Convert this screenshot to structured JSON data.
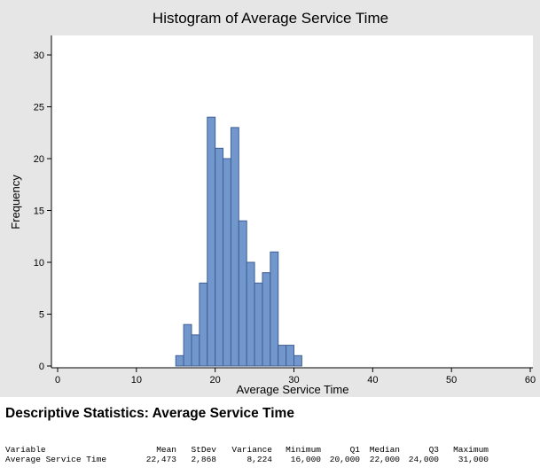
{
  "chart_data": {
    "type": "bar",
    "subtype": "histogram",
    "title": "Histogram of Average Service Time",
    "xlabel": "Average Service Time",
    "ylabel": "Frequency",
    "xlim": [
      0,
      60
    ],
    "ylim": [
      0,
      31
    ],
    "x_ticks": [
      0,
      10,
      20,
      30,
      40,
      50,
      60
    ],
    "y_ticks": [
      0,
      5,
      10,
      15,
      20,
      25,
      30
    ],
    "bin_width": 1,
    "bin_starts": [
      15,
      16,
      17,
      18,
      19,
      20,
      21,
      22,
      23,
      24,
      25,
      26,
      27,
      28,
      29,
      30
    ],
    "values": [
      1,
      4,
      3,
      8,
      24,
      21,
      20,
      23,
      14,
      10,
      8,
      9,
      11,
      2,
      2,
      1
    ],
    "bar_color": "#7297cc",
    "bar_edge_color": "#3f5f95",
    "plot_background": "#ffffff",
    "panel_background": "#e6e6e6",
    "grid": false
  },
  "stats": {
    "heading": "Descriptive Statistics: Average Service Time",
    "columns": [
      "Variable",
      "Mean",
      "StDev",
      "Variance",
      "Minimum",
      "Q1",
      "Median",
      "Q3",
      "Maximum"
    ],
    "row": [
      "Average Service Time",
      "22,473",
      "2,868",
      "8,224",
      "16,000",
      "20,000",
      "22,000",
      "24,000",
      "31,000"
    ]
  }
}
